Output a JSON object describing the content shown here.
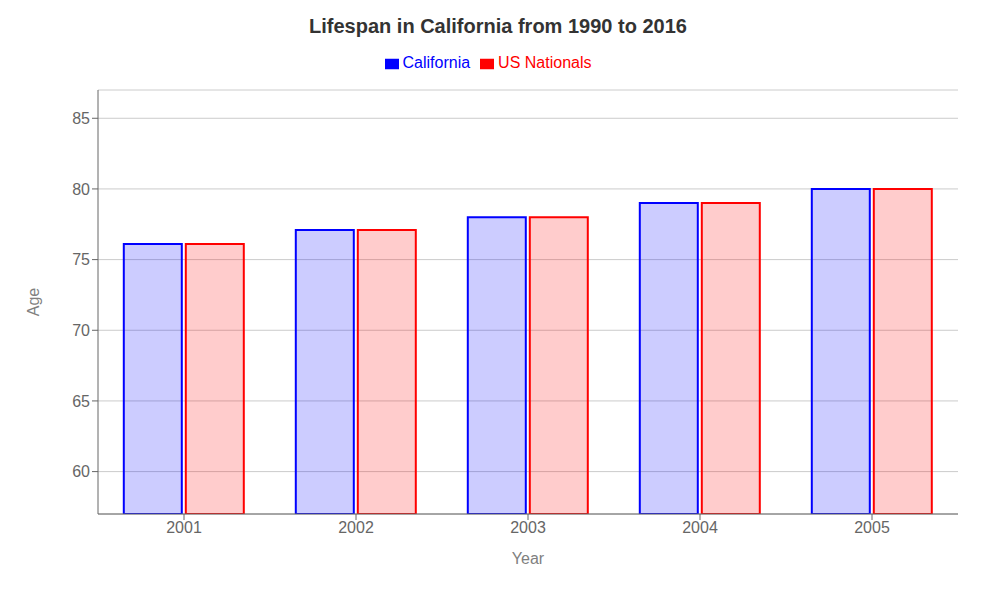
{
  "chart_data": {
    "type": "bar",
    "title": "Lifespan in California from 1990 to 2016",
    "xlabel": "Year",
    "ylabel": "Age",
    "categories": [
      "2001",
      "2002",
      "2003",
      "2004",
      "2005"
    ],
    "series": [
      {
        "name": "California",
        "color": "#0000ff",
        "values": [
          76.1,
          77.1,
          78.0,
          79.0,
          80.0
        ]
      },
      {
        "name": "US Nationals",
        "color": "#ff0000",
        "values": [
          76.1,
          77.1,
          78.0,
          79.0,
          80.0
        ]
      }
    ],
    "ylim": [
      57,
      87
    ],
    "yticks": [
      60,
      65,
      70,
      75,
      80,
      85
    ],
    "grid": true,
    "legend": "top"
  }
}
